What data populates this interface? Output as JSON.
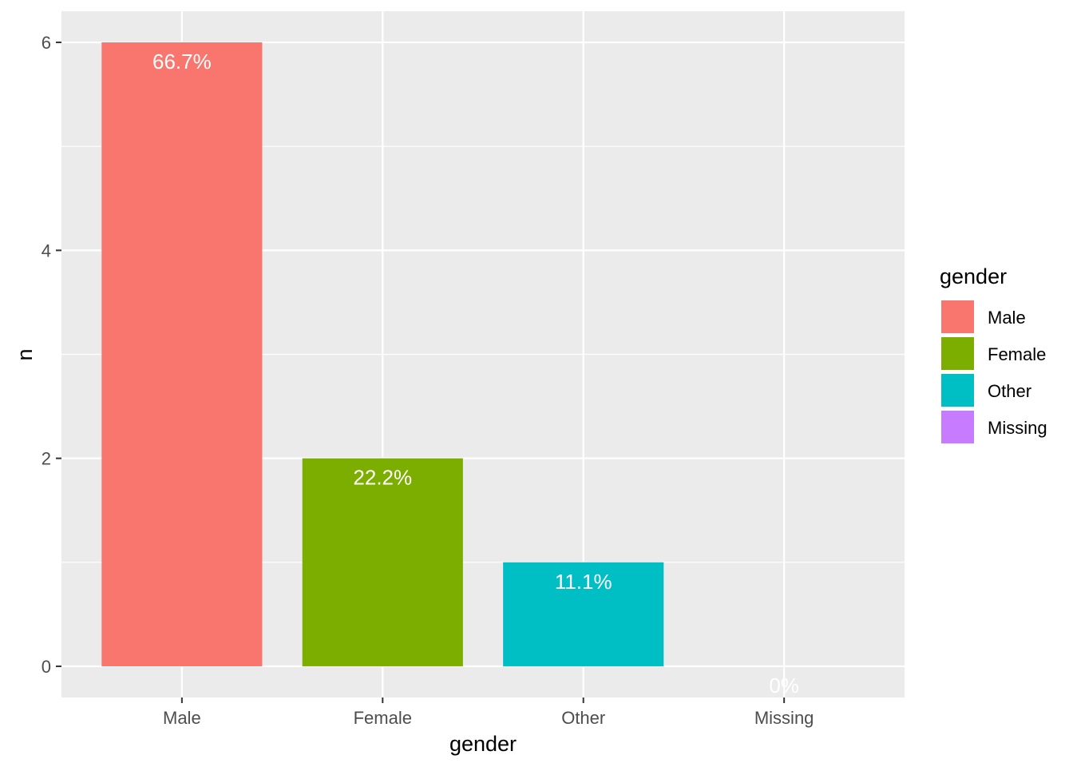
{
  "chart_data": {
    "type": "bar",
    "categories": [
      "Male",
      "Female",
      "Other",
      "Missing"
    ],
    "values": [
      6,
      2,
      1,
      0
    ],
    "data_labels": [
      "66.7%",
      "22.2%",
      "11.1%",
      "0%"
    ],
    "colors": [
      "#F8766D",
      "#7CAE00",
      "#00BFC4",
      "#C77CFF"
    ],
    "xlabel": "gender",
    "ylabel": "n",
    "ylim": [
      -0.3,
      6.3
    ],
    "yticks": [
      0,
      2,
      4,
      6
    ],
    "ytick_labels": [
      "0",
      "2",
      "4",
      "6"
    ],
    "grid": true,
    "panel_background": "#EBEBEB",
    "legend": {
      "title": "gender",
      "position": "right",
      "entries": [
        "Male",
        "Female",
        "Other",
        "Missing"
      ]
    }
  }
}
